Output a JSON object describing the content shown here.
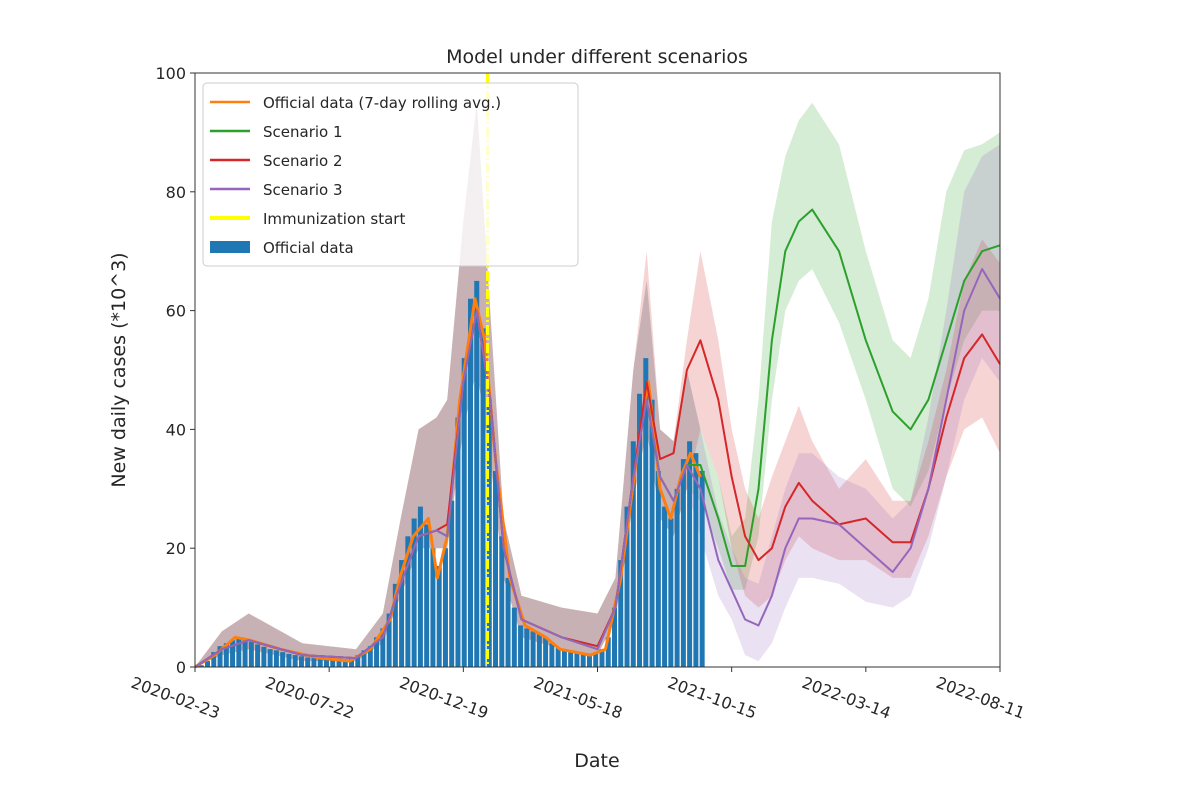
{
  "chart_data": {
    "type": "line",
    "title": "Model under different scenarios",
    "xlabel": "Date",
    "ylabel": "New daily cases (*10^3)",
    "ylim": [
      0,
      100
    ],
    "xlim": [
      "2020-02-23",
      "2022-08-11"
    ],
    "yticks": [
      0,
      20,
      40,
      60,
      80,
      100
    ],
    "xticks": [
      "2020-02-23",
      "2020-07-22",
      "2020-12-19",
      "2021-05-18",
      "2021-10-15",
      "2022-03-14",
      "2022-08-11"
    ],
    "grid": false,
    "legend_position": "top-left",
    "legend": [
      "Official data (7-day rolling avg.)",
      "Scenario 1",
      "Scenario 2",
      "Scenario 3",
      "Immunization start",
      "Official data"
    ],
    "colors": {
      "official_avg": "#ff7f0e",
      "scenario1": "#2ca02c",
      "scenario2": "#d62728",
      "scenario3": "#9467bd",
      "immunization": "#ffff00",
      "official_bars": "#1f77b4"
    },
    "immunization_start": "2021-01-15",
    "official_data": {
      "x": [
        "2020-02-23",
        "2020-03-01",
        "2020-03-08",
        "2020-03-15",
        "2020-03-22",
        "2020-03-29",
        "2020-04-05",
        "2020-04-12",
        "2020-04-19",
        "2020-04-26",
        "2020-05-03",
        "2020-05-10",
        "2020-05-17",
        "2020-05-24",
        "2020-05-31",
        "2020-06-07",
        "2020-06-14",
        "2020-06-21",
        "2020-06-28",
        "2020-07-05",
        "2020-07-12",
        "2020-07-19",
        "2020-07-26",
        "2020-08-02",
        "2020-08-09",
        "2020-08-16",
        "2020-08-23",
        "2020-08-30",
        "2020-09-06",
        "2020-09-13",
        "2020-09-20",
        "2020-09-27",
        "2020-10-04",
        "2020-10-11",
        "2020-10-18",
        "2020-10-25",
        "2020-11-01",
        "2020-11-08",
        "2020-11-15",
        "2020-11-22",
        "2020-11-29",
        "2020-12-06",
        "2020-12-13",
        "2020-12-20",
        "2020-12-27",
        "2021-01-03",
        "2021-01-10",
        "2021-01-17",
        "2021-01-24",
        "2021-01-31",
        "2021-02-07",
        "2021-02-14",
        "2021-02-21",
        "2021-02-28",
        "2021-03-07",
        "2021-03-14",
        "2021-03-21",
        "2021-03-28",
        "2021-04-04",
        "2021-04-11",
        "2021-04-18",
        "2021-04-25",
        "2021-05-02",
        "2021-05-09",
        "2021-05-16",
        "2021-05-23",
        "2021-05-30",
        "2021-06-06",
        "2021-06-13",
        "2021-06-20",
        "2021-06-27",
        "2021-07-04",
        "2021-07-11",
        "2021-07-18",
        "2021-07-25",
        "2021-08-01",
        "2021-08-08",
        "2021-08-15",
        "2021-08-22",
        "2021-08-29",
        "2021-09-05",
        "2021-09-12"
      ],
      "y": [
        0,
        0.3,
        1,
        2.5,
        3.5,
        4,
        4.5,
        4.8,
        4.5,
        4.2,
        3.8,
        3.4,
        3,
        2.8,
        2.5,
        2.2,
        2,
        1.8,
        1.6,
        1.5,
        1.4,
        1.3,
        1.2,
        1.2,
        1.3,
        1.5,
        2,
        2.8,
        3.5,
        5,
        6.5,
        9,
        14,
        18,
        22,
        25,
        27,
        24,
        20,
        17,
        20,
        28,
        42,
        52,
        62,
        65,
        57,
        45,
        33,
        22,
        15,
        10,
        7,
        6.5,
        6,
        5.5,
        5,
        4,
        3.2,
        2.8,
        2.5,
        2.3,
        2.2,
        2.1,
        2.3,
        3,
        5,
        10,
        18,
        27,
        38,
        46,
        52,
        45,
        33,
        27,
        25,
        30,
        35,
        38,
        36,
        33
      ]
    },
    "official_avg": {
      "x": [
        "2020-02-23",
        "2020-03-16",
        "2020-04-08",
        "2020-04-25",
        "2020-05-28",
        "2020-07-12",
        "2020-08-14",
        "2020-09-06",
        "2020-09-28",
        "2020-10-09",
        "2020-10-24",
        "2020-11-10",
        "2020-11-20",
        "2020-12-01",
        "2020-12-15",
        "2021-01-01",
        "2021-01-12",
        "2021-01-24",
        "2021-02-09",
        "2021-02-26",
        "2021-03-21",
        "2021-04-06",
        "2021-05-10",
        "2021-05-27",
        "2021-06-13",
        "2021-07-05",
        "2021-07-14",
        "2021-07-27",
        "2021-08-08",
        "2021-08-19",
        "2021-08-30",
        "2021-09-10"
      ],
      "y": [
        0,
        2,
        5,
        4.5,
        3,
        1.5,
        1,
        3,
        8,
        15,
        22,
        25,
        15,
        22,
        45,
        62,
        55,
        35,
        15,
        7,
        5,
        3,
        2,
        3,
        15,
        40,
        48,
        30,
        25,
        32,
        36,
        32
      ]
    },
    "model_x": [
      "2020-02-23",
      "2020-03-24",
      "2020-04-23",
      "2020-06-22",
      "2020-08-21",
      "2020-09-20",
      "2020-10-10",
      "2020-10-30",
      "2020-11-19",
      "2020-12-01",
      "2020-12-19",
      "2021-01-03",
      "2021-01-18",
      "2021-02-02",
      "2021-02-22",
      "2021-04-08",
      "2021-05-18",
      "2021-06-07",
      "2021-06-27",
      "2021-07-12",
      "2021-07-27",
      "2021-08-11",
      "2021-08-26",
      "2021-09-10",
      "2021-09-30",
      "2021-10-15",
      "2021-10-30",
      "2021-11-14",
      "2021-11-29",
      "2021-12-14",
      "2021-12-29",
      "2022-01-13",
      "2022-02-12",
      "2022-03-14",
      "2022-04-13",
      "2022-05-03",
      "2022-05-23",
      "2022-06-12",
      "2022-07-02",
      "2022-07-22",
      "2022-08-11"
    ],
    "series": [
      {
        "name": "Scenario 1",
        "color": "#2ca02c",
        "y": [
          0,
          3,
          4.5,
          2,
          1.5,
          5,
          14,
          22,
          23,
          22,
          48,
          60,
          45,
          20,
          8,
          5,
          3,
          10,
          32,
          45,
          32,
          28,
          34,
          34,
          25,
          17,
          17,
          30,
          55,
          70,
          75,
          77,
          70,
          55,
          43,
          40,
          45,
          55,
          65,
          70,
          71
        ],
        "lower": [
          0,
          2,
          3,
          1,
          1,
          4,
          12,
          20,
          20,
          20,
          40,
          50,
          35,
          15,
          5,
          3,
          2,
          8,
          28,
          40,
          25,
          22,
          30,
          28,
          20,
          13,
          13,
          22,
          45,
          60,
          65,
          67,
          58,
          45,
          30,
          27,
          33,
          45,
          55,
          60,
          60
        ],
        "upper": [
          0,
          6,
          9,
          4,
          3,
          9,
          25,
          40,
          42,
          45,
          75,
          95,
          60,
          25,
          12,
          10,
          9,
          15,
          50,
          65,
          40,
          38,
          50,
          40,
          32,
          22,
          25,
          45,
          75,
          86,
          92,
          95,
          88,
          70,
          55,
          52,
          62,
          80,
          87,
          88,
          90
        ]
      },
      {
        "name": "Scenario 2",
        "color": "#d62728",
        "y": [
          0,
          3,
          4.5,
          2,
          1.5,
          5,
          14,
          22,
          23,
          24,
          48,
          60,
          45,
          20,
          8,
          5,
          3.5,
          10,
          32,
          48,
          35,
          36,
          50,
          55,
          45,
          32,
          22,
          18,
          20,
          27,
          31,
          28,
          24,
          25,
          21,
          21,
          30,
          42,
          52,
          56,
          51
        ],
        "lower": [
          0,
          2,
          3,
          1,
          1,
          4,
          12,
          20,
          20,
          20,
          40,
          50,
          35,
          15,
          5,
          3,
          2,
          8,
          28,
          40,
          25,
          22,
          30,
          40,
          32,
          20,
          12,
          10,
          12,
          18,
          22,
          20,
          18,
          18,
          15,
          15,
          22,
          32,
          40,
          42,
          36
        ],
        "upper": [
          0,
          6,
          9,
          4,
          3,
          9,
          25,
          40,
          42,
          45,
          75,
          95,
          60,
          25,
          12,
          10,
          9,
          15,
          50,
          70,
          40,
          38,
          55,
          70,
          55,
          40,
          30,
          25,
          32,
          38,
          44,
          38,
          30,
          35,
          28,
          28,
          38,
          50,
          65,
          72,
          68
        ]
      },
      {
        "name": "Scenario 3",
        "color": "#9467bd",
        "y": [
          0,
          3,
          4.5,
          2,
          1.5,
          5,
          14,
          22,
          23,
          22,
          48,
          60,
          45,
          20,
          8,
          5,
          3,
          10,
          32,
          45,
          32,
          28,
          34,
          30,
          18,
          13,
          8,
          7,
          12,
          20,
          25,
          25,
          24,
          20,
          16,
          20,
          30,
          45,
          60,
          67,
          62
        ],
        "lower": [
          0,
          2,
          3,
          1,
          1,
          4,
          12,
          20,
          20,
          20,
          40,
          50,
          35,
          15,
          5,
          3,
          2,
          8,
          28,
          40,
          25,
          22,
          30,
          22,
          12,
          8,
          2,
          1,
          4,
          10,
          15,
          15,
          14,
          11,
          10,
          12,
          20,
          32,
          45,
          52,
          48
        ],
        "upper": [
          0,
          6,
          9,
          4,
          3,
          9,
          25,
          40,
          42,
          45,
          75,
          95,
          60,
          25,
          12,
          10,
          9,
          15,
          50,
          65,
          40,
          38,
          50,
          40,
          26,
          20,
          15,
          14,
          22,
          30,
          36,
          36,
          32,
          30,
          25,
          28,
          42,
          60,
          80,
          86,
          88
        ]
      }
    ]
  }
}
